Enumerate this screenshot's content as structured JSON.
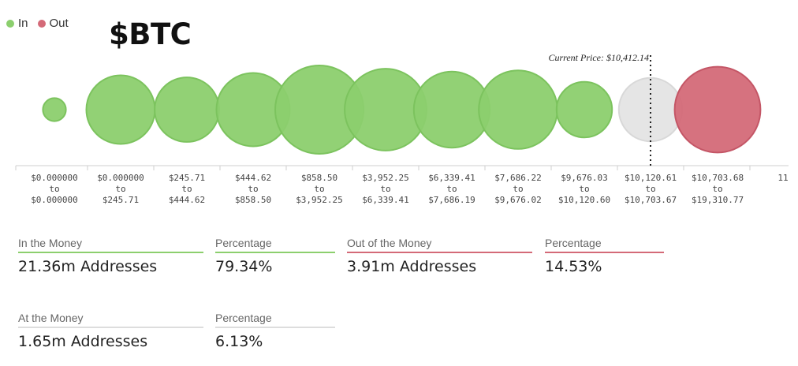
{
  "legend": [
    {
      "label": "In",
      "color": "#8ccf6e"
    },
    {
      "label": "Out",
      "color": "#d46a78"
    }
  ],
  "ticker": "$BTC",
  "chart_data": {
    "type": "bubble",
    "current_price_label": "Current Price: $10,412.14",
    "buckets": [
      {
        "from": "$0.000000",
        "to": "$0.000000",
        "status": "in",
        "size": 0.01
      },
      {
        "from": "$0.000000",
        "to": "$245.71",
        "status": "in",
        "size": 0.53
      },
      {
        "from": "$245.71",
        "to": "$444.62",
        "status": "in",
        "size": 0.45
      },
      {
        "from": "$444.62",
        "to": "$858.50",
        "status": "in",
        "size": 0.63
      },
      {
        "from": "$858.50",
        "to": "$3,952.25",
        "status": "in",
        "size": 1.0
      },
      {
        "from": "$3,952.25",
        "to": "$6,339.41",
        "status": "in",
        "size": 0.83
      },
      {
        "from": "$6,339.41",
        "to": "$7,686.19",
        "status": "in",
        "size": 0.69
      },
      {
        "from": "$7,686.22",
        "to": "$9,676.02",
        "status": "in",
        "size": 0.75
      },
      {
        "from": "$9,676.03",
        "to": "$10,120.60",
        "status": "in",
        "size": 0.3
      },
      {
        "from": "$10,120.61",
        "to": "$10,703.67",
        "status": "at",
        "size": 0.43
      },
      {
        "from": "$10,703.68",
        "to": "$19,310.77",
        "status": "out",
        "size": 0.93
      },
      {
        "from": "11",
        "to": "",
        "status": "none",
        "size": 0
      }
    ],
    "colors": {
      "in": "#8ccf6e",
      "in_stroke": "#7cc35e",
      "out": "#d46a78",
      "out_stroke": "#c45666",
      "at": "#e4e4e4",
      "at_stroke": "#d8d8d8"
    }
  },
  "stats": {
    "in_money": {
      "label": "In the Money",
      "value": "21.36m Addresses"
    },
    "in_pct": {
      "label": "Percentage",
      "value": "79.34%"
    },
    "out_money": {
      "label": "Out of the Money",
      "value": "3.91m Addresses"
    },
    "out_pct": {
      "label": "Percentage",
      "value": "14.53%"
    },
    "at_money": {
      "label": "At the Money",
      "value": "1.65m Addresses"
    },
    "at_pct": {
      "label": "Percentage",
      "value": "6.13%"
    }
  }
}
